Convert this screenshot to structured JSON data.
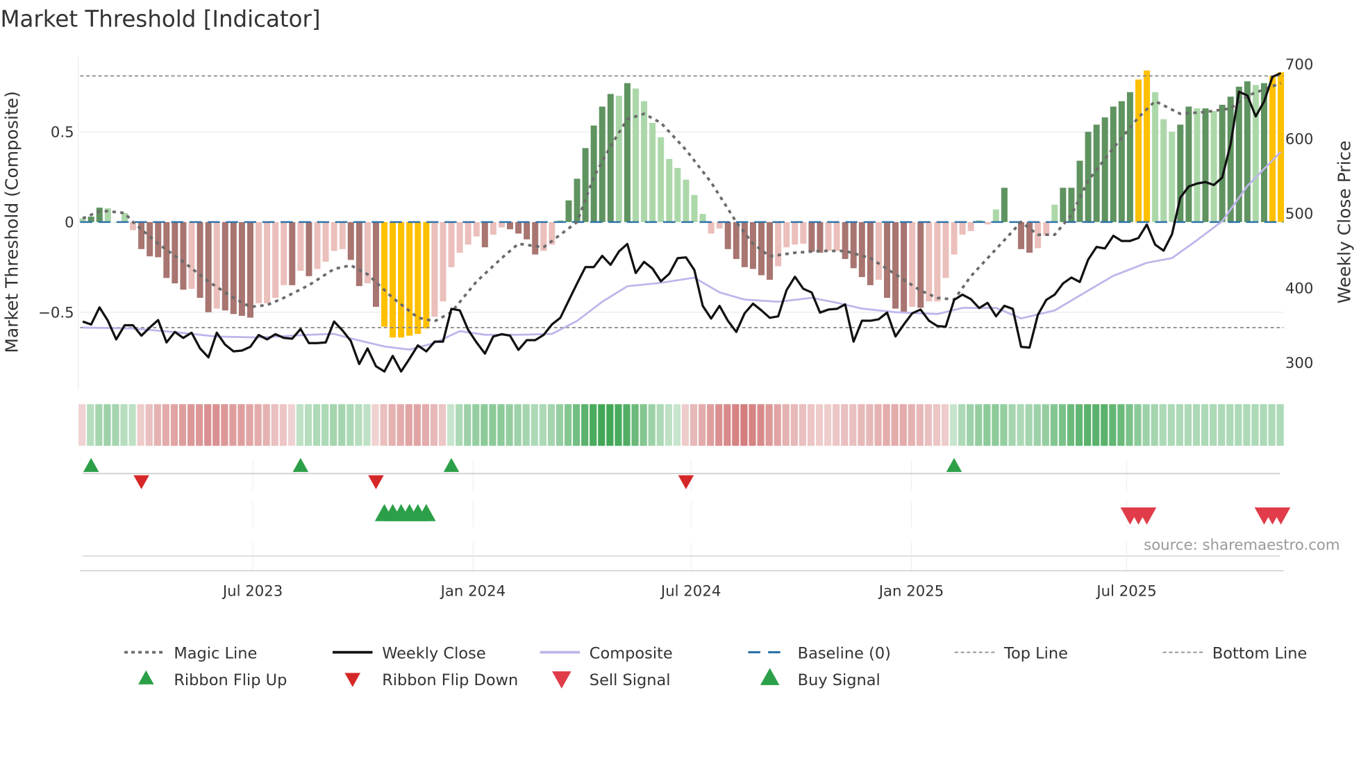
{
  "chart_data": {
    "type": "bar",
    "title": "Market Threshold [Indicator]",
    "ylabel_left": "Market Threshold (Composite)",
    "ylabel_right": "Weekly Close Price",
    "ylim_left": [
      -0.92,
      0.92
    ],
    "ylim_right": [
      250,
      720
    ],
    "yticks_left": [
      {
        "value": 0.5,
        "label": "0.5"
      },
      {
        "value": 0,
        "label": "0"
      },
      {
        "value": -0.5,
        "label": "−0.5"
      }
    ],
    "yticks_right": [
      {
        "value": 700,
        "label": "700"
      },
      {
        "value": 600,
        "label": "600"
      },
      {
        "value": 500,
        "label": "500"
      },
      {
        "value": 400,
        "label": "400"
      },
      {
        "value": 300,
        "label": "300"
      }
    ],
    "xticks": [
      {
        "week": 20.3,
        "label": "Jul 2023"
      },
      {
        "week": 46.6,
        "label": "Jan 2024"
      },
      {
        "week": 72.6,
        "label": "Jul 2024"
      },
      {
        "week": 98.9,
        "label": "Jan 2025"
      },
      {
        "week": 124.6,
        "label": "Jul 2025"
      }
    ],
    "top_line": 0.81,
    "bottom_line": -0.585,
    "baseline": 0,
    "bar_colors": {
      "G": "#5f9360",
      "g": "#acd8a9",
      "R": "#a87571",
      "r": "#ebbfbb",
      "Y": "#ffc000"
    },
    "bars": [
      [
        0.02,
        "g"
      ],
      [
        0.03,
        "G"
      ],
      [
        0.08,
        "G"
      ],
      [
        0.077,
        "g"
      ],
      [
        0.0,
        "g"
      ],
      [
        0.05,
        "g"
      ],
      [
        -0.045,
        "r"
      ],
      [
        -0.15,
        "R"
      ],
      [
        -0.19,
        "R"
      ],
      [
        -0.195,
        "R"
      ],
      [
        -0.31,
        "R"
      ],
      [
        -0.34,
        "R"
      ],
      [
        -0.375,
        "R"
      ],
      [
        -0.37,
        "r"
      ],
      [
        -0.42,
        "R"
      ],
      [
        -0.5,
        "R"
      ],
      [
        -0.48,
        "r"
      ],
      [
        -0.49,
        "R"
      ],
      [
        -0.51,
        "R"
      ],
      [
        -0.52,
        "R"
      ],
      [
        -0.53,
        "R"
      ],
      [
        -0.45,
        "r"
      ],
      [
        -0.45,
        "r"
      ],
      [
        -0.42,
        "r"
      ],
      [
        -0.35,
        "r"
      ],
      [
        -0.35,
        "R"
      ],
      [
        -0.27,
        "r"
      ],
      [
        -0.3,
        "R"
      ],
      [
        -0.26,
        "r"
      ],
      [
        -0.22,
        "r"
      ],
      [
        -0.16,
        "r"
      ],
      [
        -0.15,
        "r"
      ],
      [
        -0.21,
        "R"
      ],
      [
        -0.355,
        "R"
      ],
      [
        -0.34,
        "r"
      ],
      [
        -0.47,
        "R"
      ],
      [
        -0.58,
        "Y"
      ],
      [
        -0.64,
        "Y"
      ],
      [
        -0.64,
        "Y"
      ],
      [
        -0.63,
        "Y"
      ],
      [
        -0.62,
        "Y"
      ],
      [
        -0.59,
        "Y"
      ],
      [
        -0.525,
        "r"
      ],
      [
        -0.44,
        "r"
      ],
      [
        -0.25,
        "r"
      ],
      [
        -0.17,
        "r"
      ],
      [
        -0.125,
        "r"
      ],
      [
        -0.08,
        "r"
      ],
      [
        -0.14,
        "R"
      ],
      [
        -0.07,
        "r"
      ],
      [
        -0.03,
        "r"
      ],
      [
        -0.04,
        "R"
      ],
      [
        -0.064,
        "R"
      ],
      [
        -0.096,
        "R"
      ],
      [
        -0.18,
        "R"
      ],
      [
        -0.16,
        "r"
      ],
      [
        -0.125,
        "r"
      ],
      [
        0.01,
        "g"
      ],
      [
        0.12,
        "G"
      ],
      [
        0.24,
        "G"
      ],
      [
        0.41,
        "G"
      ],
      [
        0.535,
        "G"
      ],
      [
        0.64,
        "G"
      ],
      [
        0.71,
        "G"
      ],
      [
        0.7,
        "g"
      ],
      [
        0.77,
        "G"
      ],
      [
        0.74,
        "g"
      ],
      [
        0.67,
        "g"
      ],
      [
        0.55,
        "g"
      ],
      [
        0.47,
        "g"
      ],
      [
        0.35,
        "g"
      ],
      [
        0.3,
        "g"
      ],
      [
        0.235,
        "g"
      ],
      [
        0.15,
        "g"
      ],
      [
        0.045,
        "g"
      ],
      [
        -0.064,
        "r"
      ],
      [
        -0.036,
        "r"
      ],
      [
        -0.15,
        "R"
      ],
      [
        -0.205,
        "R"
      ],
      [
        -0.25,
        "R"
      ],
      [
        -0.26,
        "R"
      ],
      [
        -0.295,
        "R"
      ],
      [
        -0.32,
        "R"
      ],
      [
        -0.245,
        "r"
      ],
      [
        -0.14,
        "r"
      ],
      [
        -0.125,
        "r"
      ],
      [
        -0.12,
        "r"
      ],
      [
        -0.165,
        "R"
      ],
      [
        -0.17,
        "R"
      ],
      [
        -0.16,
        "r"
      ],
      [
        -0.16,
        "r"
      ],
      [
        -0.205,
        "R"
      ],
      [
        -0.256,
        "R"
      ],
      [
        -0.305,
        "R"
      ],
      [
        -0.35,
        "R"
      ],
      [
        -0.32,
        "r"
      ],
      [
        -0.42,
        "R"
      ],
      [
        -0.48,
        "R"
      ],
      [
        -0.5,
        "R"
      ],
      [
        -0.47,
        "r"
      ],
      [
        -0.475,
        "R"
      ],
      [
        -0.44,
        "r"
      ],
      [
        -0.44,
        "r"
      ],
      [
        -0.31,
        "r"
      ],
      [
        -0.18,
        "r"
      ],
      [
        -0.07,
        "r"
      ],
      [
        -0.05,
        "r"
      ],
      [
        0.01,
        "g"
      ],
      [
        -0.013,
        "r"
      ],
      [
        0.07,
        "g"
      ],
      [
        0.19,
        "G"
      ],
      [
        0.0,
        "g"
      ],
      [
        -0.15,
        "R"
      ],
      [
        -0.17,
        "R"
      ],
      [
        -0.145,
        "r"
      ],
      [
        -0.075,
        "r"
      ],
      [
        0.096,
        "g"
      ],
      [
        0.19,
        "G"
      ],
      [
        0.19,
        "G"
      ],
      [
        0.34,
        "G"
      ],
      [
        0.5,
        "G"
      ],
      [
        0.54,
        "G"
      ],
      [
        0.58,
        "G"
      ],
      [
        0.64,
        "G"
      ],
      [
        0.67,
        "G"
      ],
      [
        0.72,
        "G"
      ],
      [
        0.79,
        "Y"
      ],
      [
        0.84,
        "Y"
      ],
      [
        0.72,
        "g"
      ],
      [
        0.57,
        "g"
      ],
      [
        0.5,
        "g"
      ],
      [
        0.54,
        "G"
      ],
      [
        0.64,
        "G"
      ],
      [
        0.63,
        "g"
      ],
      [
        0.63,
        "G"
      ],
      [
        0.615,
        "g"
      ],
      [
        0.65,
        "G"
      ],
      [
        0.695,
        "G"
      ],
      [
        0.75,
        "G"
      ],
      [
        0.78,
        "G"
      ],
      [
        0.76,
        "g"
      ],
      [
        0.77,
        "G"
      ],
      [
        0.81,
        "Y"
      ],
      [
        0.83,
        "Y"
      ]
    ],
    "magic_line": [
      [
        0,
        0.02
      ],
      [
        2,
        0.06
      ],
      [
        3,
        0.06
      ],
      [
        5,
        0.05
      ],
      [
        6,
        0.0
      ],
      [
        9,
        -0.12
      ],
      [
        12,
        -0.22
      ],
      [
        15,
        -0.33
      ],
      [
        18,
        -0.42
      ],
      [
        20,
        -0.47
      ],
      [
        22,
        -0.46
      ],
      [
        24,
        -0.42
      ],
      [
        27,
        -0.35
      ],
      [
        30,
        -0.26
      ],
      [
        32,
        -0.24
      ],
      [
        34,
        -0.29
      ],
      [
        37,
        -0.42
      ],
      [
        40,
        -0.53
      ],
      [
        42,
        -0.55
      ],
      [
        44,
        -0.5
      ],
      [
        47,
        -0.33
      ],
      [
        50,
        -0.2
      ],
      [
        52,
        -0.12
      ],
      [
        55,
        -0.14
      ],
      [
        59,
        0.0
      ],
      [
        61,
        0.25
      ],
      [
        63,
        0.42
      ],
      [
        65,
        0.57
      ],
      [
        67,
        0.6
      ],
      [
        69,
        0.55
      ],
      [
        72,
        0.4
      ],
      [
        75,
        0.22
      ],
      [
        78,
        0.0
      ],
      [
        80,
        -0.12
      ],
      [
        82,
        -0.19
      ],
      [
        85,
        -0.17
      ],
      [
        88,
        -0.16
      ],
      [
        91,
        -0.16
      ],
      [
        94,
        -0.2
      ],
      [
        97,
        -0.29
      ],
      [
        100,
        -0.38
      ],
      [
        102,
        -0.42
      ],
      [
        104,
        -0.43
      ],
      [
        106,
        -0.3
      ],
      [
        109,
        -0.15
      ],
      [
        112,
        0.0
      ],
      [
        114,
        -0.07
      ],
      [
        116,
        -0.07
      ],
      [
        118,
        0.04
      ],
      [
        120,
        0.23
      ],
      [
        123,
        0.41
      ],
      [
        126,
        0.58
      ],
      [
        128,
        0.67
      ],
      [
        131,
        0.6
      ],
      [
        134,
        0.61
      ],
      [
        137,
        0.63
      ],
      [
        139,
        0.7
      ],
      [
        143,
        0.77
      ]
    ],
    "composite_line": [
      [
        0,
        -0.585
      ],
      [
        6,
        -0.59
      ],
      [
        11,
        -0.61
      ],
      [
        16,
        -0.635
      ],
      [
        21,
        -0.64
      ],
      [
        27,
        -0.625
      ],
      [
        30,
        -0.62
      ],
      [
        32,
        -0.645
      ],
      [
        36,
        -0.69
      ],
      [
        39,
        -0.707
      ],
      [
        42,
        -0.67
      ],
      [
        45,
        -0.605
      ],
      [
        48,
        -0.625
      ],
      [
        52,
        -0.625
      ],
      [
        56,
        -0.62
      ],
      [
        59,
        -0.548
      ],
      [
        62,
        -0.442
      ],
      [
        65,
        -0.356
      ],
      [
        69,
        -0.337
      ],
      [
        73,
        -0.308
      ],
      [
        76,
        -0.39
      ],
      [
        79,
        -0.43
      ],
      [
        83,
        -0.442
      ],
      [
        87,
        -0.42
      ],
      [
        90,
        -0.447
      ],
      [
        93,
        -0.48
      ],
      [
        97,
        -0.5
      ],
      [
        102,
        -0.51
      ],
      [
        105,
        -0.476
      ],
      [
        109,
        -0.476
      ],
      [
        112,
        -0.534
      ],
      [
        116,
        -0.49
      ],
      [
        120,
        -0.38
      ],
      [
        123,
        -0.298
      ],
      [
        127,
        -0.226
      ],
      [
        130,
        -0.2
      ],
      [
        133,
        -0.1
      ],
      [
        136,
        0.005
      ],
      [
        139,
        0.2
      ],
      [
        143,
        0.39
      ]
    ],
    "weekly_close": [
      355,
      351,
      374,
      356,
      331,
      350,
      350,
      336,
      347,
      357,
      327,
      341,
      333,
      340,
      319,
      307,
      340,
      324,
      315,
      316,
      321,
      337,
      331,
      338,
      333,
      332,
      345,
      326,
      326,
      327,
      355,
      343,
      329,
      298,
      319,
      295,
      288,
      309,
      288,
      305,
      323,
      315,
      328,
      328,
      372,
      370,
      344,
      327,
      312,
      335,
      338,
      336,
      317,
      330,
      330,
      337,
      351,
      360,
      383,
      406,
      428,
      428,
      443,
      431,
      449,
      459,
      420,
      435,
      426,
      409,
      419,
      440,
      441,
      424,
      376,
      359,
      376,
      356,
      341,
      366,
      379,
      370,
      360,
      362,
      397,
      415,
      399,
      394,
      367,
      371,
      372,
      378,
      328,
      356,
      356,
      358,
      367,
      335,
      351,
      366,
      371,
      356,
      349,
      348,
      384,
      391,
      385,
      373,
      380,
      362,
      376,
      372,
      321,
      320,
      364,
      384,
      391,
      406,
      414,
      408,
      438,
      455,
      453,
      470,
      463,
      463,
      467,
      485,
      458,
      450,
      472,
      521,
      536,
      540,
      542,
      538,
      548,
      593,
      663,
      658,
      630,
      650,
      683,
      688
    ],
    "ribbon": [
      -0.15,
      0.25,
      0.35,
      0.4,
      0.35,
      0.25,
      0.2,
      -0.2,
      -0.3,
      -0.4,
      -0.45,
      -0.5,
      -0.55,
      -0.6,
      -0.6,
      -0.65,
      -0.65,
      -0.6,
      -0.55,
      -0.55,
      -0.5,
      -0.45,
      -0.4,
      -0.3,
      -0.25,
      -0.15,
      0.2,
      0.25,
      0.3,
      0.3,
      0.35,
      0.35,
      0.3,
      0.25,
      0.2,
      -0.15,
      -0.3,
      -0.4,
      -0.45,
      -0.5,
      -0.5,
      -0.45,
      -0.35,
      -0.25,
      0.15,
      0.3,
      0.4,
      0.45,
      0.5,
      0.5,
      0.5,
      0.45,
      0.4,
      0.35,
      0.3,
      0.3,
      0.35,
      0.45,
      0.55,
      0.65,
      0.8,
      0.9,
      0.95,
      0.95,
      0.9,
      0.85,
      0.7,
      0.55,
      0.4,
      0.3,
      0.2,
      0.15,
      -0.2,
      -0.35,
      -0.45,
      -0.55,
      -0.65,
      -0.7,
      -0.75,
      -0.8,
      -0.75,
      -0.7,
      -0.6,
      -0.5,
      -0.4,
      -0.35,
      -0.3,
      -0.25,
      -0.2,
      -0.2,
      -0.25,
      -0.3,
      -0.3,
      -0.35,
      -0.35,
      -0.4,
      -0.45,
      -0.45,
      -0.45,
      -0.4,
      -0.35,
      -0.3,
      -0.25,
      -0.2,
      0.15,
      0.3,
      0.4,
      0.45,
      0.5,
      0.5,
      0.45,
      0.35,
      0.3,
      0.35,
      0.4,
      0.45,
      0.55,
      0.6,
      0.7,
      0.75,
      0.8,
      0.8,
      0.8,
      0.75,
      0.7,
      0.6,
      0.5,
      0.4,
      0.35,
      0.3,
      0.3,
      0.3,
      0.3,
      0.3,
      0.3,
      0.3,
      0.3,
      0.3,
      0.3,
      0.3,
      0.3,
      0.3,
      0.3,
      0.3
    ],
    "ribbon_flip_up": [
      1,
      26,
      44,
      104
    ],
    "ribbon_flip_down": [
      7,
      35,
      72
    ],
    "buy_signal": [
      36,
      37,
      38,
      39,
      40,
      41
    ],
    "sell_signal": [
      125,
      126,
      127,
      141,
      142,
      143
    ],
    "legend": [
      {
        "label": "Magic Line",
        "kind": "dotted"
      },
      {
        "label": "Weekly Close",
        "kind": "solid-black"
      },
      {
        "label": "Composite",
        "kind": "solid-lavender"
      },
      {
        "label": "Baseline (0)",
        "kind": "dashed-blue"
      },
      {
        "label": "Top Line",
        "kind": "dashed-gray"
      },
      {
        "label": "Bottom Line",
        "kind": "dashed-gray"
      },
      {
        "label": "Ribbon Flip Up",
        "kind": "tri-up-green"
      },
      {
        "label": "Ribbon Flip Down",
        "kind": "tri-down-red"
      },
      {
        "label": "Sell Signal",
        "kind": "tri-down-red-big"
      },
      {
        "label": "Buy Signal",
        "kind": "tri-up-green-big"
      }
    ],
    "legend_placement": "bottom",
    "source": "source: sharemaestro.com"
  }
}
